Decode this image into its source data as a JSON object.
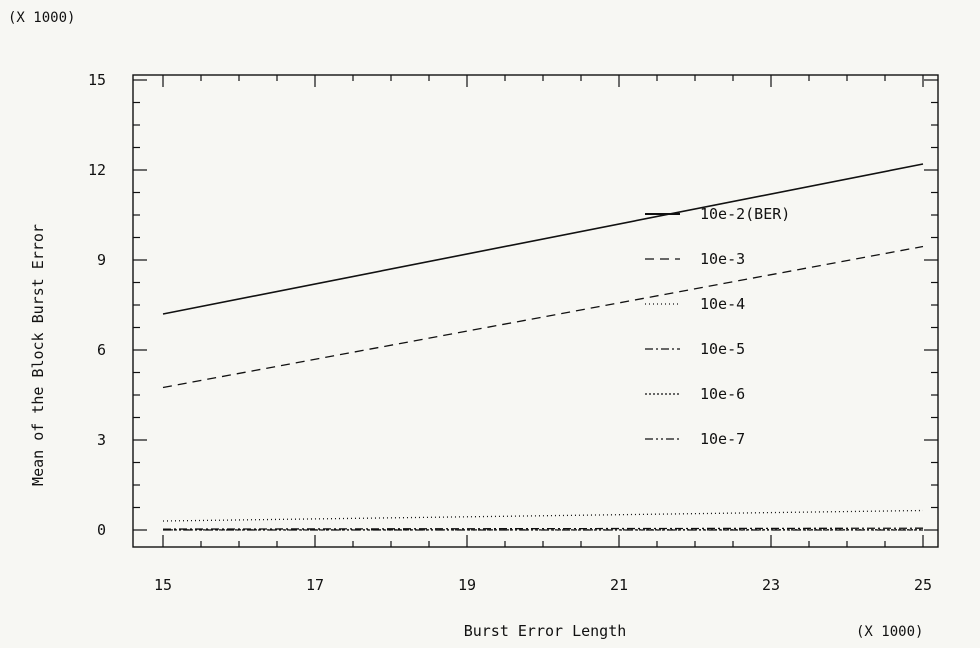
{
  "chart_data": {
    "type": "line",
    "y_multiplier_label": "(X 1000)",
    "x_multiplier_label": "(X 1000)",
    "xlabel": "Burst Error Length",
    "ylabel": "Mean of the Block Burst Error",
    "xlim": [
      15,
      25
    ],
    "ylim": [
      0,
      15
    ],
    "x_ticks": [
      15,
      17,
      19,
      21,
      23,
      25
    ],
    "x_tick_labels": [
      "15",
      "17",
      "19",
      "21",
      "23",
      "25"
    ],
    "y_ticks": [
      0,
      3,
      6,
      9,
      12,
      15
    ],
    "y_tick_labels": [
      "0",
      "3",
      "6",
      "9",
      "12",
      "15"
    ],
    "grid": false,
    "legend_position": "right-center",
    "x": [
      15,
      25
    ],
    "series": [
      {
        "name": "10e-2(BER)",
        "values": [
          7.2,
          12.2
        ],
        "dash": "solid"
      },
      {
        "name": "10e-3",
        "values": [
          4.75,
          9.45
        ],
        "dash": "dashed"
      },
      {
        "name": "10e-4",
        "values": [
          0.3,
          0.65
        ],
        "dash": "dotted"
      },
      {
        "name": "10e-5",
        "values": [
          0.03,
          0.06
        ],
        "dash": "dashdot"
      },
      {
        "name": "10e-6",
        "values": [
          0.004,
          0.008
        ],
        "dash": "finedot"
      },
      {
        "name": "10e-7",
        "values": [
          0.0,
          0.001
        ],
        "dash": "dashdotdot"
      }
    ]
  }
}
